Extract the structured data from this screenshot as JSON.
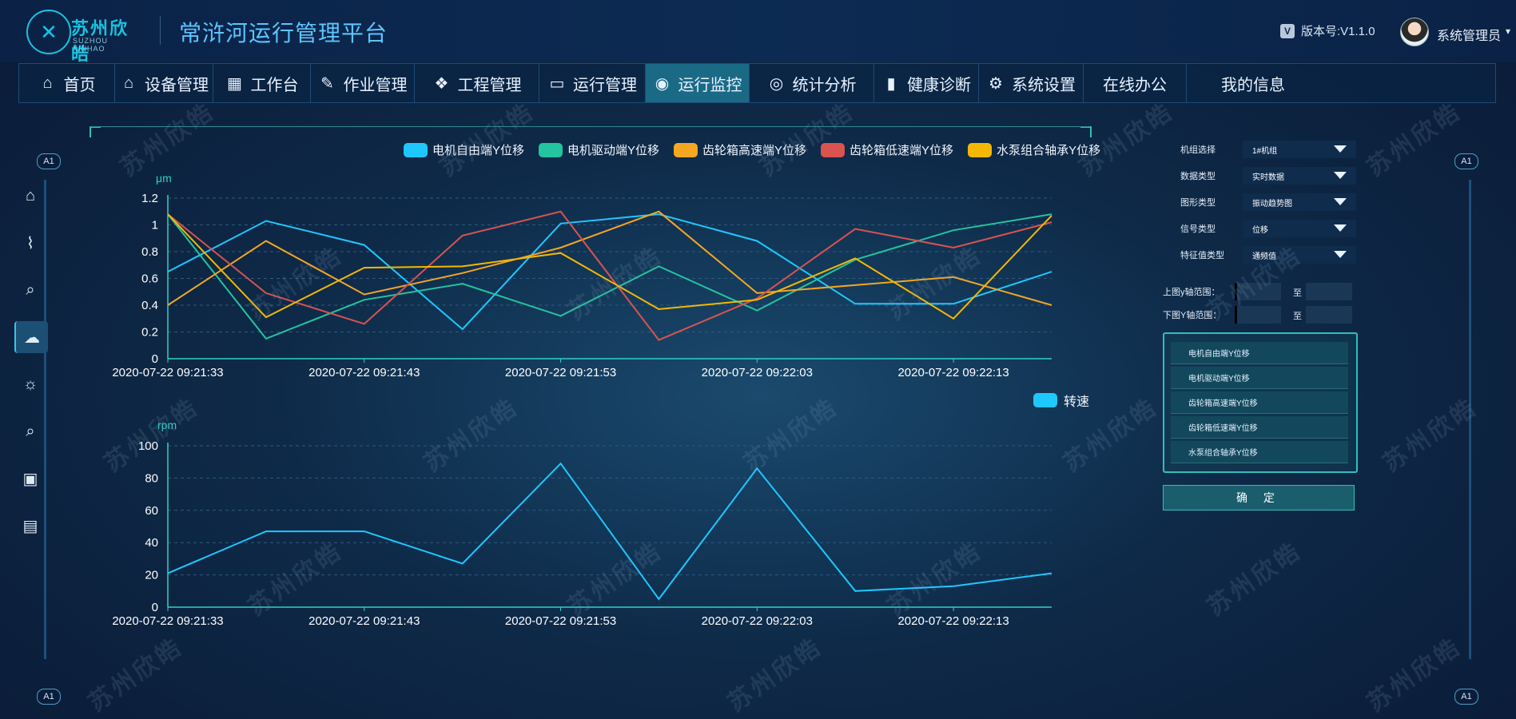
{
  "header": {
    "logo_cn": "苏州欣皓",
    "logo_en": "SUZHOU XINHAO",
    "platform_title": "常浒河运行管理平台",
    "version": "版本号:V1.1.0",
    "username": "系统管理员"
  },
  "nav": [
    {
      "label": "首页",
      "icon": "home-icon",
      "w": 120
    },
    {
      "label": "设备管理",
      "icon": "house-icon",
      "w": 123
    },
    {
      "label": "工作台",
      "icon": "grid-icon",
      "w": 122
    },
    {
      "label": "作业管理",
      "icon": "wrench-icon",
      "w": 130
    },
    {
      "label": "工程管理",
      "icon": "blocks-icon",
      "w": 156
    },
    {
      "label": "运行管理",
      "icon": "monitor-icon",
      "w": 133
    },
    {
      "label": "运行监控",
      "icon": "target-icon",
      "w": 130,
      "active": true
    },
    {
      "label": "统计分析",
      "icon": "disc-icon",
      "w": 156
    },
    {
      "label": "健康诊断",
      "icon": "barchart-icon",
      "w": 131
    },
    {
      "label": "系统设置",
      "icon": "gear-icon",
      "w": 131
    },
    {
      "label": "在线办公",
      "icon": "",
      "w": 129
    },
    {
      "label": "我的信息",
      "icon": "",
      "w": 166
    }
  ],
  "badges": [
    "A1",
    "A1",
    "A1",
    "A1"
  ],
  "side_menu": [
    "home-icon",
    "line-chart-icon",
    "search-chart-icon",
    "cloud-icon",
    "bulb-icon",
    "search-doc-icon",
    "doc-image-icon",
    "report-icon"
  ],
  "chart_data": [
    {
      "type": "line",
      "ylabel": "μm",
      "ylim": [
        0,
        1.2
      ],
      "yticks": [
        "0",
        "0.2",
        "0.4",
        "0.6",
        "0.8",
        "1",
        "1.2"
      ],
      "xticks": [
        "2020-07-22 09:21:33",
        "2020-07-22 09:21:43",
        "2020-07-22 09:21:53",
        "2020-07-22 09:22:03",
        "2020-07-22 09:22:13"
      ],
      "series": [
        {
          "name": "电机自由端Y位移",
          "color": "#1ec8ff",
          "values": [
            0.65,
            1.03,
            0.85,
            0.22,
            1.01,
            1.08,
            0.88,
            0.41,
            0.41,
            0.65
          ]
        },
        {
          "name": "电机驱动端Y位移",
          "color": "#23c4a0",
          "values": [
            1.08,
            0.15,
            0.44,
            0.56,
            0.32,
            0.69,
            0.36,
            0.74,
            0.96,
            1.08
          ]
        },
        {
          "name": "齿轮箱高速端Y位移",
          "color": "#f5a623",
          "values": [
            0.4,
            0.88,
            0.48,
            0.64,
            0.83,
            1.1,
            0.49,
            0.55,
            0.61,
            0.4
          ]
        },
        {
          "name": "齿轮箱低速端Y位移",
          "color": "#d9534f",
          "values": [
            1.08,
            0.49,
            0.26,
            0.92,
            1.1,
            0.14,
            0.45,
            0.97,
            0.83,
            1.02
          ]
        },
        {
          "name": "水泵组合轴承Y位移",
          "color": "#f5b800",
          "values": [
            1.08,
            0.31,
            0.68,
            0.69,
            0.79,
            0.37,
            0.44,
            0.75,
            0.3,
            1.07
          ]
        }
      ]
    },
    {
      "type": "line",
      "ylabel": "rpm",
      "ylim": [
        0,
        100
      ],
      "yticks": [
        "0",
        "20",
        "40",
        "60",
        "80",
        "100"
      ],
      "xticks": [
        "2020-07-22 09:21:33",
        "2020-07-22 09:21:43",
        "2020-07-22 09:21:53",
        "2020-07-22 09:22:03",
        "2020-07-22 09:22:13"
      ],
      "series": [
        {
          "name": "转速",
          "color": "#1ec8ff",
          "values": [
            21,
            47,
            47,
            27,
            89,
            5,
            86,
            10,
            13,
            21
          ]
        }
      ]
    }
  ],
  "form": {
    "rows": [
      {
        "label": "机组选择",
        "value": "1#机组"
      },
      {
        "label": "数据类型",
        "value": "实时数据"
      },
      {
        "label": "图形类型",
        "value": "振动趋势图"
      },
      {
        "label": "信号类型",
        "value": "位移"
      },
      {
        "label": "特征值类型",
        "value": "通频值"
      }
    ],
    "upper_range_label": "上图y轴范围：",
    "lower_range_label": "下图Y轴范围：",
    "to": "至",
    "signals": [
      "电机自由端Y位移",
      "电机驱动端Y位移",
      "齿轮箱高速端Y位移",
      "齿轮箱低速端Y位移",
      "水泵组合轴承Y位移"
    ],
    "confirm": "确 定"
  },
  "watermark": "苏州欣皓"
}
